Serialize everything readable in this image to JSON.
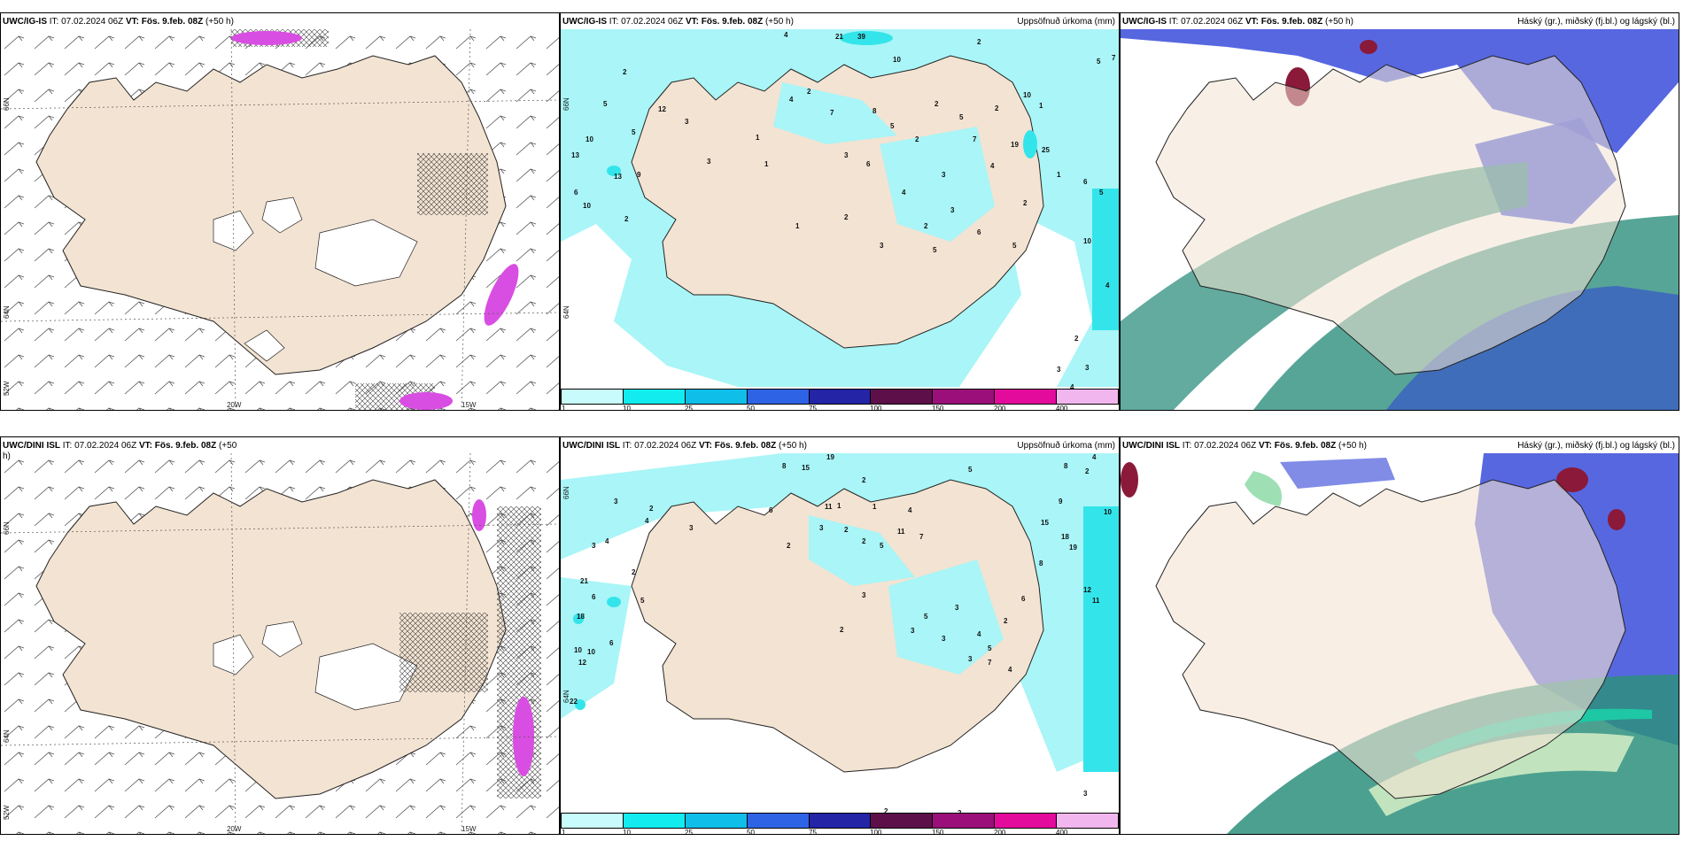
{
  "panels": [
    {
      "id": "p1",
      "title_model": "UWC/IG-IS",
      "title_it": " IT: 07.02.2024 06Z ",
      "title_vt": "VT: Fös. 9.feb. 08Z",
      "title_lead": " (+50 h)",
      "right_label": "",
      "axis": {
        "lon_a": "20W",
        "lon_b": "15W",
        "lat_a": "66N",
        "lat_b": "64N",
        "lat_c": "52W"
      }
    },
    {
      "id": "p2",
      "title_model": "UWC/IG-IS",
      "title_it": " IT: 07.02.2024 06Z ",
      "title_vt": "VT: Fös. 9.feb. 08Z",
      "title_lead": " (+50 h)",
      "right_label": "Uppsöfnuð úrkoma (mm)",
      "axis": {
        "lat_a": "66N",
        "lat_b": "64N"
      },
      "values": [
        "4",
        "21",
        "39",
        "2",
        "10",
        "5",
        "7",
        "2",
        "5",
        "12",
        "3",
        "5",
        "10",
        "13",
        "6",
        "9",
        "13",
        "2",
        "10",
        "3",
        "1",
        "4",
        "2",
        "7",
        "8",
        "1",
        "3",
        "6",
        "5",
        "2",
        "2",
        "5",
        "2",
        "10",
        "1",
        "19",
        "25",
        "1",
        "6",
        "5",
        "2",
        "4",
        "7",
        "3",
        "10",
        "4",
        "2",
        "3",
        "2",
        "6",
        "5",
        "3",
        "5",
        "3",
        "4",
        "1",
        "2",
        "3",
        "4",
        "6"
      ]
    },
    {
      "id": "p3",
      "title_model": "UWC/IG-IS",
      "title_it": " IT: 07.02.2024 06Z ",
      "title_vt": "VT: Fös. 9.feb. 08Z",
      "title_lead": " (+50 h)",
      "right_label": "Háský (gr.), miðský (fj.bl.) og lágský (bl.)"
    },
    {
      "id": "p4",
      "title_model": "UWC/DINI ISL",
      "title_it": " IT: 07.02.2024 06Z ",
      "title_vt": "VT: Fös. 9.feb. 08Z",
      "title_lead": " (+50",
      "title_cont": "h)",
      "right_label": "",
      "axis": {
        "lon_a": "20W",
        "lon_b": "15W",
        "lat_a": "66N",
        "lat_b": "64N",
        "lat_c": "52W"
      }
    },
    {
      "id": "p5",
      "title_model": "UWC/DINI ISL",
      "title_it": " IT: 07.02.2024 06Z ",
      "title_vt": "VT: Fös. 9.feb. 08Z",
      "title_lead": " (+50 h)",
      "right_label": "Uppsöfnuð úrkoma (mm)",
      "axis": {
        "lat_a": "66N",
        "lat_b": "64N"
      },
      "values": [
        "8",
        "15",
        "19",
        "2",
        "5",
        "3",
        "2",
        "11",
        "8",
        "4",
        "2",
        "6",
        "4",
        "3",
        "1",
        "4",
        "7",
        "11",
        "10",
        "9",
        "2",
        "3",
        "2",
        "2",
        "5",
        "1",
        "15",
        "18",
        "19",
        "21",
        "3",
        "4",
        "2",
        "5",
        "6",
        "3",
        "5",
        "3",
        "12",
        "11",
        "8",
        "6",
        "18",
        "10",
        "10",
        "12",
        "22",
        "6",
        "2",
        "3",
        "3",
        "4",
        "2",
        "5",
        "7",
        "3",
        "4",
        "3",
        "2",
        "2"
      ]
    },
    {
      "id": "p6",
      "title_model": "UWC/DINI ISL",
      "title_it": " IT: 07.02.2024 06Z ",
      "title_vt": "VT: Fös. 9.feb. 08Z",
      "title_lead": " (+50 h)",
      "right_label": "Háský (gr.), miðský (fj.bl.) og lágský (bl.)"
    }
  ],
  "legend": {
    "colors": [
      "#c8fbfb",
      "#13ecef",
      "#0fbfea",
      "#2f63e6",
      "#2424a6",
      "#5d0f4a",
      "#9b0f7a",
      "#e30b9c",
      "#f2b6ee"
    ],
    "ticks": [
      "1",
      "10",
      "25",
      "50",
      "75",
      "100",
      "150",
      "200",
      "400"
    ]
  },
  "colors": {
    "land": "#f3e3d2",
    "coast": "#222222",
    "precip_light": "#a9f5f7",
    "precip_mid": "#33e5ea",
    "snow_purple": "#d94ee2",
    "high_cloud": "#2d8f7d",
    "mid_cloud": "#2c3fd6",
    "low_cloud": "#8b1a3a"
  }
}
